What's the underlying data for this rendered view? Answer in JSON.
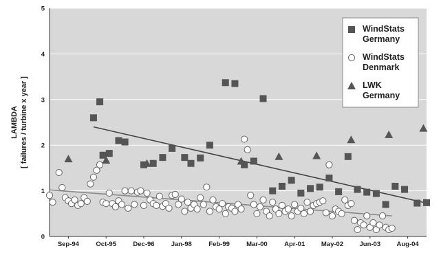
{
  "chart_data": {
    "type": "scatter",
    "title": "",
    "xlabel": "",
    "ylabel": "LAMBDA",
    "ylabel_sub": "[ failures / turbine x year ]",
    "ylim": [
      0,
      5
    ],
    "yticks": [
      0,
      1,
      2,
      3,
      4,
      5
    ],
    "xticks": [
      "Sep-94",
      "Oct-95",
      "Dec-96",
      "Jan-98",
      "Feb-99",
      "Mar-00",
      "Apr-01",
      "May-02",
      "Jun-03",
      "Aug-04"
    ],
    "xrange": [
      "1994-09",
      "2004-09"
    ],
    "grid": true,
    "legend_position": "top-right",
    "colors": {
      "plot_bg": "#d8d8d8",
      "grid": "#ffffff",
      "series_filled": "#555555",
      "series_open_fill": "#ffffff",
      "series_open_stroke": "#666666",
      "trend_dark": "#444444",
      "trend_light": "#8a8a8a"
    },
    "series": [
      {
        "name": "WindStats Germany",
        "marker": "square",
        "points": [
          [
            "1995-11",
            2.6
          ],
          [
            "1996-01",
            2.95
          ],
          [
            "1996-02",
            1.78
          ],
          [
            "1996-04",
            1.82
          ],
          [
            "1996-07",
            2.1
          ],
          [
            "1996-09",
            2.07
          ],
          [
            "1997-03",
            1.57
          ],
          [
            "1997-06",
            1.6
          ],
          [
            "1997-09",
            1.73
          ],
          [
            "1997-12",
            1.93
          ],
          [
            "1998-04",
            1.73
          ],
          [
            "1998-06",
            1.6
          ],
          [
            "1998-09",
            1.72
          ],
          [
            "1998-12",
            2.0
          ],
          [
            "1999-05",
            3.37
          ],
          [
            "1999-08",
            3.35
          ],
          [
            "1999-11",
            1.57
          ],
          [
            "2000-02",
            1.65
          ],
          [
            "2000-05",
            3.02
          ],
          [
            "2000-08",
            1.0
          ],
          [
            "2000-11",
            1.1
          ],
          [
            "2001-02",
            1.23
          ],
          [
            "2001-05",
            0.95
          ],
          [
            "2001-08",
            1.05
          ],
          [
            "2001-11",
            1.08
          ],
          [
            "2002-02",
            1.28
          ],
          [
            "2002-05",
            0.98
          ],
          [
            "2002-08",
            1.75
          ],
          [
            "2002-11",
            1.03
          ],
          [
            "2003-02",
            0.97
          ],
          [
            "2003-05",
            0.94
          ],
          [
            "2003-08",
            0.7
          ],
          [
            "2003-11",
            1.1
          ],
          [
            "2004-02",
            1.03
          ],
          [
            "2004-06",
            0.73
          ],
          [
            "2004-09",
            0.74
          ]
        ],
        "trend": [
          [
            "1995-11",
            2.4
          ],
          [
            "2004-09",
            0.73
          ]
        ]
      },
      {
        "name": "WindStats Denmark",
        "marker": "circle",
        "points": [
          [
            "1994-09",
            0.9
          ],
          [
            "1994-10",
            0.75
          ],
          [
            "1994-12",
            1.4
          ],
          [
            "1995-01",
            1.07
          ],
          [
            "1995-02",
            0.85
          ],
          [
            "1995-03",
            0.78
          ],
          [
            "1995-04",
            0.72
          ],
          [
            "1995-05",
            0.8
          ],
          [
            "1995-06",
            0.68
          ],
          [
            "1995-07",
            0.72
          ],
          [
            "1995-08",
            0.85
          ],
          [
            "1995-09",
            0.77
          ],
          [
            "1995-10",
            1.15
          ],
          [
            "1995-11",
            1.3
          ],
          [
            "1995-12",
            1.45
          ],
          [
            "1996-01",
            1.57
          ],
          [
            "1996-02",
            0.75
          ],
          [
            "1996-03",
            0.72
          ],
          [
            "1996-04",
            0.95
          ],
          [
            "1996-05",
            0.72
          ],
          [
            "1996-06",
            0.65
          ],
          [
            "1996-07",
            0.78
          ],
          [
            "1996-08",
            0.7
          ],
          [
            "1996-09",
            1.0
          ],
          [
            "1996-10",
            0.62
          ],
          [
            "1996-11",
            1.0
          ],
          [
            "1996-12",
            0.7
          ],
          [
            "1997-01",
            0.97
          ],
          [
            "1997-02",
            1.0
          ],
          [
            "1997-03",
            0.68
          ],
          [
            "1997-04",
            0.95
          ],
          [
            "1997-05",
            0.8
          ],
          [
            "1997-06",
            0.72
          ],
          [
            "1997-07",
            0.68
          ],
          [
            "1997-08",
            0.88
          ],
          [
            "1997-09",
            0.66
          ],
          [
            "1997-10",
            0.72
          ],
          [
            "1997-11",
            0.62
          ],
          [
            "1997-12",
            0.9
          ],
          [
            "1998-01",
            0.92
          ],
          [
            "1998-02",
            0.7
          ],
          [
            "1998-03",
            0.82
          ],
          [
            "1998-04",
            0.55
          ],
          [
            "1998-05",
            0.75
          ],
          [
            "1998-06",
            0.62
          ],
          [
            "1998-07",
            0.7
          ],
          [
            "1998-08",
            0.6
          ],
          [
            "1998-09",
            0.85
          ],
          [
            "1998-10",
            0.7
          ],
          [
            "1998-11",
            1.08
          ],
          [
            "1998-12",
            0.55
          ],
          [
            "1999-01",
            0.8
          ],
          [
            "1999-02",
            0.65
          ],
          [
            "1999-03",
            0.6
          ],
          [
            "1999-04",
            0.72
          ],
          [
            "1999-05",
            0.5
          ],
          [
            "1999-06",
            0.65
          ],
          [
            "1999-07",
            0.62
          ],
          [
            "1999-08",
            0.55
          ],
          [
            "1999-09",
            0.7
          ],
          [
            "1999-10",
            0.6
          ],
          [
            "1999-11",
            2.13
          ],
          [
            "1999-12",
            1.9
          ],
          [
            "2000-01",
            0.9
          ],
          [
            "2000-02",
            0.7
          ],
          [
            "2000-03",
            0.5
          ],
          [
            "2000-04",
            0.65
          ],
          [
            "2000-05",
            0.8
          ],
          [
            "2000-06",
            0.55
          ],
          [
            "2000-07",
            0.45
          ],
          [
            "2000-08",
            0.75
          ],
          [
            "2000-09",
            0.6
          ],
          [
            "2000-10",
            0.5
          ],
          [
            "2000-11",
            0.68
          ],
          [
            "2000-12",
            0.55
          ],
          [
            "2001-01",
            0.6
          ],
          [
            "2001-02",
            0.45
          ],
          [
            "2001-03",
            0.7
          ],
          [
            "2001-04",
            0.55
          ],
          [
            "2001-05",
            0.62
          ],
          [
            "2001-06",
            0.5
          ],
          [
            "2001-07",
            0.75
          ],
          [
            "2001-08",
            0.55
          ],
          [
            "2001-09",
            0.68
          ],
          [
            "2001-10",
            0.72
          ],
          [
            "2001-11",
            0.75
          ],
          [
            "2001-12",
            0.78
          ],
          [
            "2002-01",
            0.52
          ],
          [
            "2002-02",
            1.57
          ],
          [
            "2002-03",
            0.45
          ],
          [
            "2002-04",
            0.6
          ],
          [
            "2002-05",
            0.55
          ],
          [
            "2002-06",
            0.5
          ],
          [
            "2002-07",
            0.8
          ],
          [
            "2002-08",
            0.68
          ],
          [
            "2002-09",
            0.72
          ],
          [
            "2002-10",
            0.35
          ],
          [
            "2002-11",
            0.15
          ],
          [
            "2002-12",
            0.3
          ],
          [
            "2003-01",
            0.25
          ],
          [
            "2003-02",
            0.45
          ],
          [
            "2003-03",
            0.2
          ],
          [
            "2003-04",
            0.3
          ],
          [
            "2003-05",
            0.15
          ],
          [
            "2003-06",
            0.25
          ],
          [
            "2003-07",
            0.45
          ],
          [
            "2003-08",
            0.2
          ],
          [
            "2003-09",
            0.15
          ],
          [
            "2003-10",
            0.18
          ]
        ],
        "trend": [
          [
            "1994-09",
            1.02
          ],
          [
            "2003-10",
            0.45
          ]
        ]
      },
      {
        "name": "LWK Germany",
        "marker": "triangle",
        "points": [
          [
            "1995-03",
            1.7
          ],
          [
            "1996-03",
            1.67
          ],
          [
            "1997-04",
            1.6
          ],
          [
            "1999-10",
            1.65
          ],
          [
            "2000-10",
            1.75
          ],
          [
            "2001-10",
            1.77
          ],
          [
            "2002-09",
            2.12
          ],
          [
            "2003-09",
            2.23
          ],
          [
            "2004-08",
            2.37
          ]
        ]
      }
    ]
  }
}
